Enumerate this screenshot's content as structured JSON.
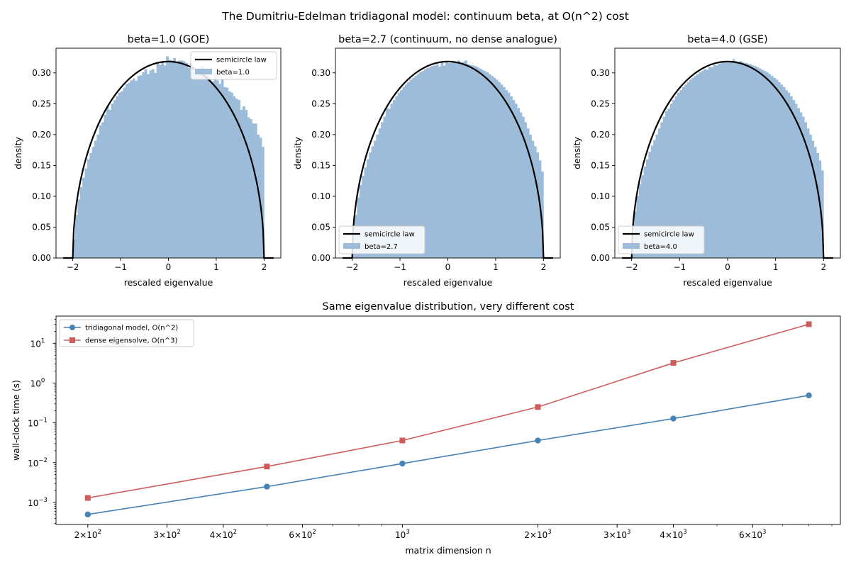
{
  "figure": {
    "suptitle": "The Dumitriu-Edelman tridiagonal model: continuum beta, at O(n^2) cost"
  },
  "colors": {
    "hist": "#9dbcd9",
    "semicircle": "#000000",
    "tridiagonal": "#4682b4",
    "dense": "#cd5c5c"
  },
  "chart_data": [
    {
      "type": "histogram",
      "title": "beta=1.0 (GOE)",
      "xlabel": "rescaled eigenvalue",
      "ylabel": "density",
      "xlim": [
        -2.35,
        2.35
      ],
      "ylim": [
        0,
        0.34
      ],
      "xticks": [
        -2,
        -1,
        0,
        1,
        2
      ],
      "xtick_labels": [
        "−2",
        "−1",
        "0",
        "1",
        "2"
      ],
      "yticks": [
        0,
        0.05,
        0.1,
        0.15,
        0.2,
        0.25,
        0.3
      ],
      "ytick_labels": [
        "0.00",
        "0.05",
        "0.10",
        "0.15",
        "0.20",
        "0.25",
        "0.30"
      ],
      "legend": {
        "position": "upper-right",
        "entries": [
          "semicircle law",
          "beta=1.0"
        ]
      },
      "histogram": {
        "bin_start": -2.0,
        "bin_width": 0.05,
        "heights": [
          0.03,
          0.07,
          0.095,
          0.115,
          0.13,
          0.145,
          0.16,
          0.17,
          0.18,
          0.19,
          0.2,
          0.215,
          0.22,
          0.232,
          0.246,
          0.24,
          0.25,
          0.256,
          0.262,
          0.268,
          0.27,
          0.276,
          0.282,
          0.284,
          0.288,
          0.291,
          0.287,
          0.295,
          0.296,
          0.301,
          0.306,
          0.298,
          0.304,
          0.306,
          0.3,
          0.318,
          0.313,
          0.319,
          0.312,
          0.327,
          0.321,
          0.32,
          0.324,
          0.318,
          0.32,
          0.32,
          0.319,
          0.316,
          0.308,
          0.316,
          0.312,
          0.307,
          0.305,
          0.31,
          0.311,
          0.298,
          0.3,
          0.292,
          0.286,
          0.3,
          0.288,
          0.282,
          0.29,
          0.277,
          0.276,
          0.27,
          0.268,
          0.262,
          0.258,
          0.256,
          0.24,
          0.246,
          0.24,
          0.228,
          0.225,
          0.218,
          0.218,
          0.2,
          0.195,
          0.18
        ]
      },
      "semicircle": {
        "support": [
          -2,
          2
        ],
        "flat_xlim": [
          -2.2,
          2.2
        ]
      }
    },
    {
      "type": "histogram",
      "title": "beta=2.7 (continuum, no dense analogue)",
      "xlabel": "rescaled eigenvalue",
      "ylabel": "density",
      "xlim": [
        -2.35,
        2.35
      ],
      "ylim": [
        0,
        0.34
      ],
      "xticks": [
        -2,
        -1,
        0,
        1,
        2
      ],
      "xtick_labels": [
        "−2",
        "−1",
        "0",
        "1",
        "2"
      ],
      "yticks": [
        0,
        0.05,
        0.1,
        0.15,
        0.2,
        0.25,
        0.3
      ],
      "ytick_labels": [
        "0.00",
        "0.05",
        "0.10",
        "0.15",
        "0.20",
        "0.25",
        "0.30"
      ],
      "legend": {
        "position": "lower-left",
        "entries": [
          "semicircle law",
          "beta=2.7"
        ]
      },
      "histogram": {
        "bin_start": -2.0,
        "bin_width": 0.05,
        "heights": [
          0.035,
          0.07,
          0.098,
          0.118,
          0.133,
          0.147,
          0.16,
          0.171,
          0.181,
          0.19,
          0.2,
          0.21,
          0.22,
          0.229,
          0.243,
          0.242,
          0.25,
          0.256,
          0.262,
          0.268,
          0.272,
          0.277,
          0.281,
          0.285,
          0.289,
          0.292,
          0.295,
          0.298,
          0.301,
          0.303,
          0.306,
          0.308,
          0.309,
          0.311,
          0.312,
          0.314,
          0.31,
          0.316,
          0.312,
          0.318,
          0.316,
          0.316,
          0.318,
          0.317,
          0.32,
          0.316,
          0.318,
          0.32,
          0.314,
          0.313,
          0.312,
          0.311,
          0.309,
          0.307,
          0.305,
          0.303,
          0.301,
          0.298,
          0.295,
          0.292,
          0.289,
          0.285,
          0.281,
          0.277,
          0.272,
          0.268,
          0.262,
          0.256,
          0.25,
          0.243,
          0.236,
          0.229,
          0.22,
          0.21,
          0.2,
          0.19,
          0.181,
          0.171,
          0.158,
          0.14
        ]
      },
      "semicircle": {
        "support": [
          -2,
          2
        ],
        "flat_xlim": [
          -2.2,
          2.2
        ]
      }
    },
    {
      "type": "histogram",
      "title": "beta=4.0 (GSE)",
      "xlabel": "rescaled eigenvalue",
      "ylabel": "density",
      "xlim": [
        -2.35,
        2.35
      ],
      "ylim": [
        0,
        0.34
      ],
      "xticks": [
        -2,
        -1,
        0,
        1,
        2
      ],
      "xtick_labels": [
        "−2",
        "−1",
        "0",
        "1",
        "2"
      ],
      "yticks": [
        0,
        0.05,
        0.1,
        0.15,
        0.2,
        0.25,
        0.3
      ],
      "ytick_labels": [
        "0.00",
        "0.05",
        "0.10",
        "0.15",
        "0.20",
        "0.25",
        "0.30"
      ],
      "legend": {
        "position": "lower-left",
        "entries": [
          "semicircle law",
          "beta=4.0"
        ]
      },
      "histogram": {
        "bin_start": -2.0,
        "bin_width": 0.05,
        "heights": [
          0.04,
          0.075,
          0.1,
          0.12,
          0.134,
          0.148,
          0.16,
          0.172,
          0.182,
          0.191,
          0.2,
          0.21,
          0.22,
          0.229,
          0.238,
          0.242,
          0.25,
          0.256,
          0.262,
          0.268,
          0.272,
          0.277,
          0.281,
          0.285,
          0.289,
          0.292,
          0.295,
          0.298,
          0.301,
          0.303,
          0.306,
          0.305,
          0.31,
          0.309,
          0.313,
          0.312,
          0.315,
          0.316,
          0.317,
          0.318,
          0.319,
          0.319,
          0.322,
          0.319,
          0.318,
          0.319,
          0.317,
          0.316,
          0.315,
          0.314,
          0.312,
          0.311,
          0.309,
          0.307,
          0.305,
          0.303,
          0.301,
          0.298,
          0.295,
          0.292,
          0.289,
          0.285,
          0.281,
          0.277,
          0.272,
          0.268,
          0.262,
          0.256,
          0.25,
          0.243,
          0.236,
          0.229,
          0.22,
          0.21,
          0.2,
          0.19,
          0.18,
          0.17,
          0.158,
          0.142
        ]
      },
      "semicircle": {
        "support": [
          -2,
          2
        ],
        "flat_xlim": [
          -2.2,
          2.2
        ]
      }
    },
    {
      "type": "line",
      "title": "Same eigenvalue distribution, very different cost",
      "xlabel": "matrix dimension n",
      "ylabel": "wall-clock time (s)",
      "xscale": "log",
      "yscale": "log",
      "xlim": [
        170,
        9400
      ],
      "ylim": [
        0.00028,
        48
      ],
      "xticks": [
        200,
        300,
        400,
        600,
        1000,
        2000,
        3000,
        4000,
        6000
      ],
      "xtick_labels": [
        {
          "mant": "2",
          "base": "10",
          "exp": "2"
        },
        {
          "mant": "3",
          "base": "10",
          "exp": "2"
        },
        {
          "mant": "4",
          "base": "10",
          "exp": "2"
        },
        {
          "mant": "6",
          "base": "10",
          "exp": "2"
        },
        {
          "mant": "",
          "base": "10",
          "exp": "3"
        },
        {
          "mant": "2",
          "base": "10",
          "exp": "3"
        },
        {
          "mant": "3",
          "base": "10",
          "exp": "3"
        },
        {
          "mant": "4",
          "base": "10",
          "exp": "3"
        },
        {
          "mant": "6",
          "base": "10",
          "exp": "3"
        }
      ],
      "yticks": [
        0.001,
        0.01,
        0.1,
        1,
        10
      ],
      "ytick_labels": [
        {
          "base": "10",
          "exp": "−3"
        },
        {
          "base": "10",
          "exp": "−2"
        },
        {
          "base": "10",
          "exp": "−1"
        },
        {
          "base": "10",
          "exp": "0"
        },
        {
          "base": "10",
          "exp": "1"
        }
      ],
      "legend": {
        "position": "upper-left"
      },
      "x": [
        200,
        500,
        1000,
        2000,
        4000,
        8000
      ],
      "series": [
        {
          "name": "tridiagonal model, O(n^2)",
          "marker": "circle",
          "values": [
            0.0005,
            0.0025,
            0.0095,
            0.036,
            0.128,
            0.49
          ]
        },
        {
          "name": "dense eigensolve, O(n^3)",
          "marker": "square",
          "values": [
            0.0013,
            0.008,
            0.036,
            0.25,
            3.2,
            30
          ]
        }
      ]
    }
  ]
}
